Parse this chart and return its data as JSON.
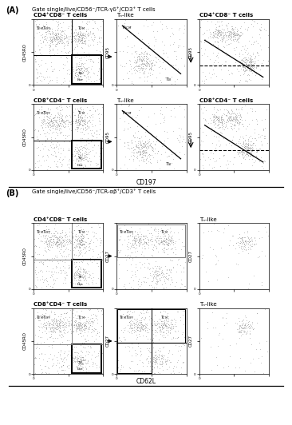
{
  "fig_width": 3.66,
  "fig_height": 5.32,
  "background": "#ffffff",
  "section_A_label": "(A)",
  "section_A_title": "Gate single/live/CD56⁻/TCR-γδ⁺/CD3⁺ T cells",
  "section_B_label": "(B)",
  "section_B_title": "Gate single/live/CD56⁻/TCR-αβ⁺/CD3⁺ T cells",
  "A_r1c1_title": "CD4⁺CD8⁻ T cells",
  "A_r1c2_title": "Tₙ-like",
  "A_r1c3_title": "CD4⁺CD8⁻ T cells",
  "A_r2c1_title": "CD8⁺CD4⁻ T cells",
  "A_r2c2_title": "Tₙ-like",
  "A_r2c3_title": "CD8⁺CD4⁻ T cells",
  "B_r1c1_title": "CD4⁺CD8⁻ T cells",
  "B_r1c3_title": "Tₙ-like",
  "B_r2c1_title": "CD8⁺CD4⁻ T cells",
  "B_r2c3_title": "Tₙ-like",
  "xaxis_A": "CD197",
  "xaxis_B": "CD62L",
  "yaxis_left": "CD45RO",
  "yaxis_A_mid": "CD95",
  "yaxis_B_mid": "CD27",
  "dot_color": "#888888",
  "dot_size": 0.45,
  "dot_alpha": 0.4
}
